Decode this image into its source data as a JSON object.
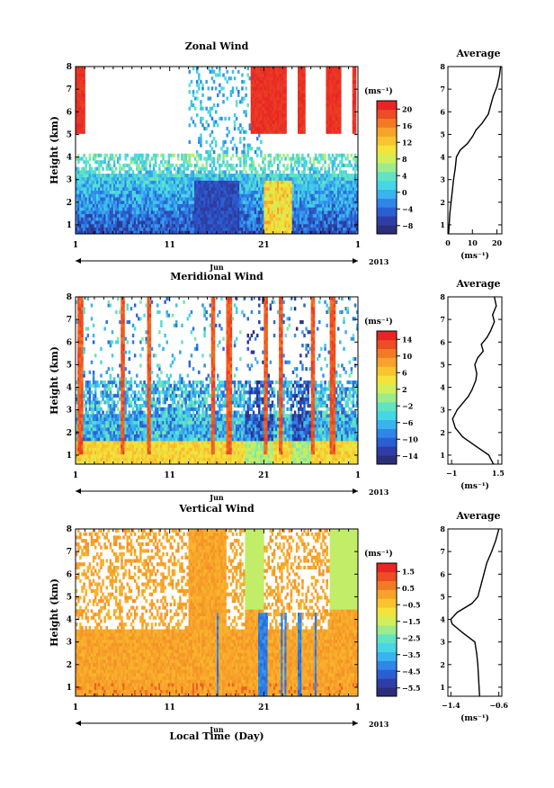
{
  "x_axis": {
    "tick_labels": [
      "1",
      "11",
      "21",
      "1"
    ],
    "month_label": "Jun",
    "year_label": "2013",
    "xlabel": "Local Time (Day)"
  },
  "profile_xlabel": "(ms⁻¹)",
  "colorbar_unit": "(ms⁻¹)",
  "colors": {
    "scale": [
      "#2b2f7a",
      "#2f3ea6",
      "#2a5fd4",
      "#2f86e8",
      "#3ab4ef",
      "#46d6e6",
      "#62e3c2",
      "#9cec8e",
      "#d2ee58",
      "#f3e33a",
      "#f9c42f",
      "#f7a22a",
      "#f27a24",
      "#ec4d24",
      "#e82424"
    ]
  },
  "chart_data": [
    {
      "type": "heatmap",
      "title": "Zonal Wind",
      "ylabel": "Height (km)",
      "ylim": [
        0.6,
        8
      ],
      "yticks": [
        1,
        2,
        3,
        4,
        5,
        6,
        7,
        8
      ],
      "xticks_day": [
        "1",
        "11",
        "21",
        "1"
      ],
      "xlim_day": [
        1,
        31
      ],
      "colorbar": {
        "unit": "(ms⁻¹)",
        "ticks": [
          20,
          16,
          12,
          8,
          4,
          0,
          -4,
          -8
        ],
        "range": [
          -10,
          22
        ]
      },
      "grid": false
    },
    {
      "type": "line",
      "title": "Average",
      "xlabel": "(ms⁻¹)",
      "xticks": [
        0,
        10,
        20
      ],
      "xlim": [
        0,
        22
      ],
      "ylim": [
        0.6,
        8
      ],
      "yticks": [
        1,
        2,
        3,
        4,
        5,
        6,
        7,
        8
      ],
      "x": [
        0.3,
        0.8,
        1.5,
        2.3,
        3.0,
        3.5,
        5.0,
        8.0,
        10.0,
        11.5,
        14.0,
        16.5,
        17.5,
        18.5,
        20.0,
        21.0,
        21.5
      ],
      "y": [
        0.6,
        1.5,
        2.2,
        3.0,
        3.5,
        4.0,
        4.3,
        4.6,
        4.9,
        5.2,
        5.5,
        5.9,
        6.3,
        6.7,
        7.1,
        7.6,
        8.0
      ]
    },
    {
      "type": "heatmap",
      "title": "Meridional Wind",
      "ylabel": "Height (km)",
      "ylim": [
        0.6,
        8
      ],
      "yticks": [
        1,
        2,
        3,
        4,
        5,
        6,
        7,
        8
      ],
      "xticks_day": [
        "1",
        "11",
        "21",
        "1"
      ],
      "xlim_day": [
        1,
        31
      ],
      "colorbar": {
        "unit": "(ms⁻¹)",
        "ticks": [
          14,
          10,
          6,
          2,
          -2,
          -6,
          -10,
          -14
        ],
        "range": [
          -16,
          16
        ]
      },
      "grid": false
    },
    {
      "type": "line",
      "title": "Average",
      "xlabel": "(ms⁻¹)",
      "xticks": [
        -1.0,
        1.5
      ],
      "xlim": [
        -1.2,
        1.7
      ],
      "ylim": [
        0.6,
        8
      ],
      "yticks": [
        1,
        2,
        3,
        4,
        5,
        6,
        7,
        8
      ],
      "x": [
        1.25,
        1.0,
        0.3,
        -0.4,
        -0.8,
        -0.95,
        -0.7,
        -0.4,
        -0.1,
        0.1,
        0.3,
        0.35,
        0.25,
        0.4,
        0.7,
        0.6,
        0.9,
        1.1,
        1.3,
        1.2,
        1.4,
        1.3
      ],
      "y": [
        0.6,
        1.0,
        1.4,
        1.8,
        2.2,
        2.6,
        3.0,
        3.3,
        3.6,
        3.9,
        4.3,
        4.6,
        5.0,
        5.3,
        5.6,
        5.9,
        6.2,
        6.5,
        6.9,
        7.2,
        7.6,
        8.0
      ]
    },
    {
      "type": "heatmap",
      "title": "Vertical Wind",
      "ylabel": "Height (km)",
      "ylim": [
        0.6,
        8
      ],
      "yticks": [
        1,
        2,
        3,
        4,
        5,
        6,
        7,
        8
      ],
      "xticks_day": [
        "1",
        "11",
        "21",
        "1"
      ],
      "xlim_day": [
        1,
        31
      ],
      "colorbar": {
        "unit": "(ms⁻¹)",
        "ticks": [
          1.5,
          0.5,
          -0.5,
          -1.5,
          -2.5,
          -3.5,
          -4.5,
          -5.5
        ],
        "range": [
          -6,
          2
        ]
      },
      "grid": false
    },
    {
      "type": "line",
      "title": "Average",
      "xlabel": "(ms⁻¹)",
      "xticks": [
        -1.4,
        -0.6
      ],
      "xlim": [
        -1.45,
        -0.55
      ],
      "ylim": [
        0.6,
        8
      ],
      "yticks": [
        1,
        2,
        3,
        4,
        5,
        6,
        7,
        8
      ],
      "x": [
        -0.92,
        -0.93,
        -0.94,
        -0.95,
        -0.97,
        -1.0,
        -1.2,
        -1.38,
        -1.4,
        -1.3,
        -1.05,
        -0.95,
        -0.9,
        -0.85,
        -0.8,
        -0.72,
        -0.65,
        -0.6
      ],
      "y": [
        0.6,
        1.0,
        1.5,
        2.0,
        2.5,
        3.0,
        3.4,
        3.8,
        4.0,
        4.3,
        4.7,
        5.0,
        5.5,
        6.0,
        6.5,
        7.0,
        7.5,
        8.0
      ]
    }
  ]
}
